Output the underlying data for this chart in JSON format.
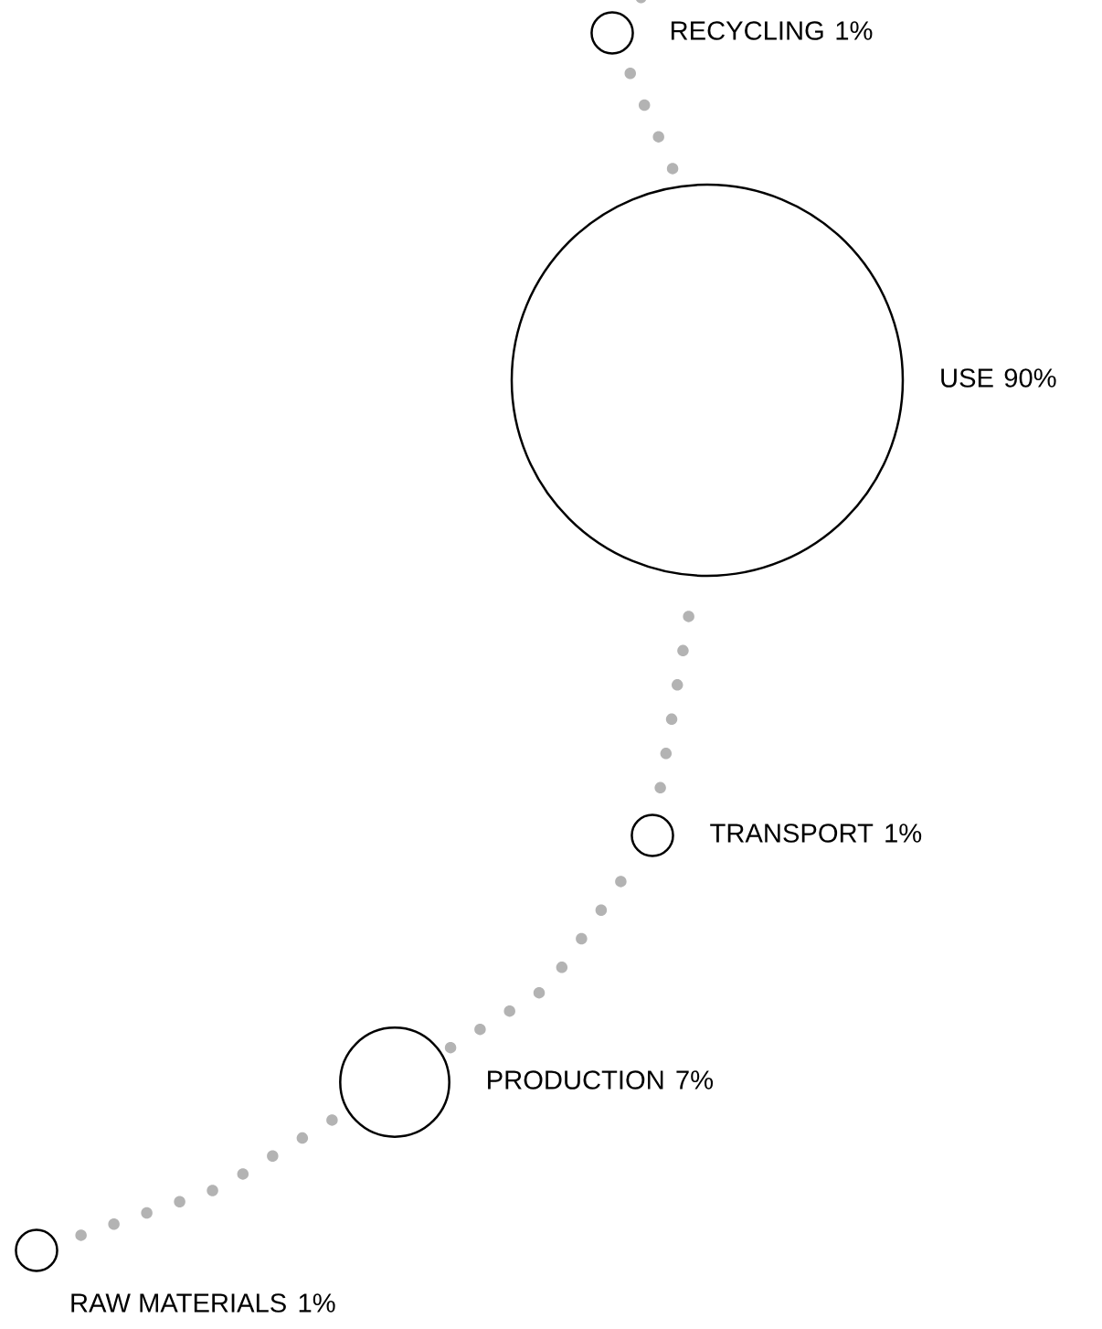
{
  "chart_data": {
    "type": "other",
    "categories": [
      "RECYCLING",
      "USE",
      "TRANSPORT",
      "PRODUCTION",
      "RAW MATERIALS"
    ],
    "values": [
      1,
      90,
      1,
      7,
      1
    ],
    "value_labels": [
      "1%",
      "90%",
      "1%",
      "7%",
      "1%"
    ],
    "color": "#000000"
  }
}
